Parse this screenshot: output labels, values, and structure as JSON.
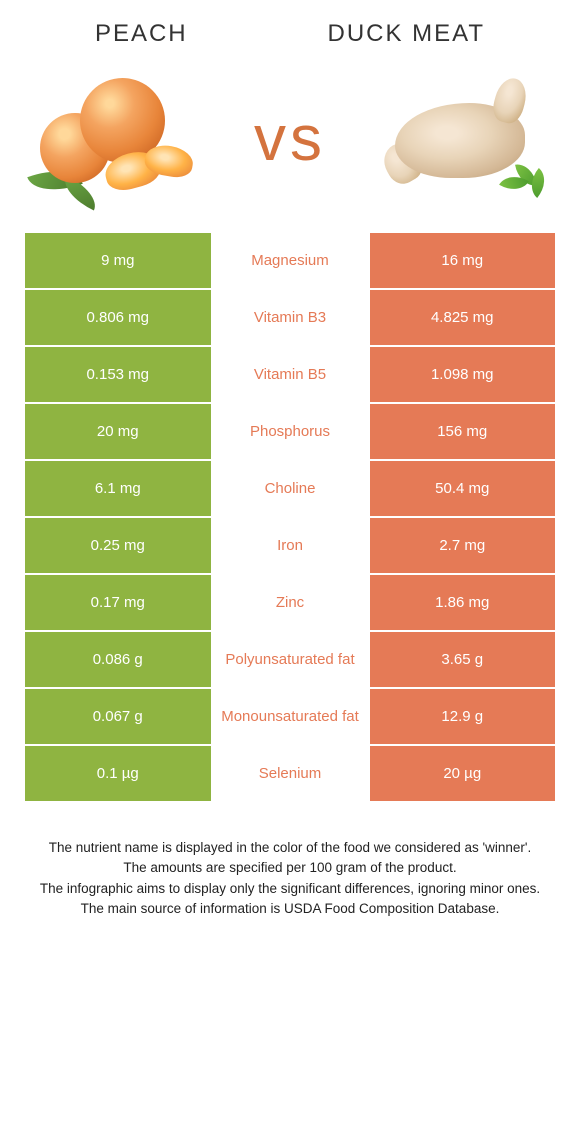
{
  "titles": {
    "left": "Peach",
    "right": "Duck meat"
  },
  "vs": "vs",
  "colors": {
    "peach": "#8fb441",
    "duck": "#e57a56",
    "mid_bg": "#ffffff"
  },
  "rows": [
    {
      "left": "9 mg",
      "mid": "Magnesium",
      "right": "16 mg",
      "winner": "duck"
    },
    {
      "left": "0.806 mg",
      "mid": "Vitamin B3",
      "right": "4.825 mg",
      "winner": "duck"
    },
    {
      "left": "0.153 mg",
      "mid": "Vitamin B5",
      "right": "1.098 mg",
      "winner": "duck"
    },
    {
      "left": "20 mg",
      "mid": "Phosphorus",
      "right": "156 mg",
      "winner": "duck"
    },
    {
      "left": "6.1 mg",
      "mid": "Choline",
      "right": "50.4 mg",
      "winner": "duck"
    },
    {
      "left": "0.25 mg",
      "mid": "Iron",
      "right": "2.7 mg",
      "winner": "duck"
    },
    {
      "left": "0.17 mg",
      "mid": "Zinc",
      "right": "1.86 mg",
      "winner": "duck"
    },
    {
      "left": "0.086 g",
      "mid": "Polyunsaturated fat",
      "right": "3.65 g",
      "winner": "duck"
    },
    {
      "left": "0.067 g",
      "mid": "Monounsaturated fat",
      "right": "12.9 g",
      "winner": "duck"
    },
    {
      "left": "0.1 µg",
      "mid": "Selenium",
      "right": "20 µg",
      "winner": "duck"
    }
  ],
  "footer": {
    "line1": "The nutrient name is displayed in the color of the food we considered as 'winner'.",
    "line2": "The amounts are specified per 100 gram of the product.",
    "line3": "The infographic aims to display only the significant differences, ignoring minor ones.",
    "line4": "The main source of information is USDA Food Composition Database."
  }
}
